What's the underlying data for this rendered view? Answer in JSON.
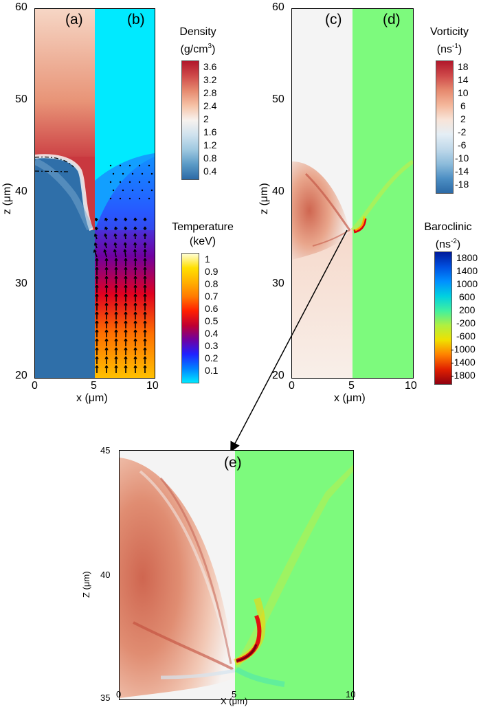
{
  "panels": {
    "a": "(a)",
    "b": "(b)",
    "c": "(c)",
    "d": "(d)",
    "e": "(e)"
  },
  "top_left": {
    "x_label_prefix": "x (",
    "x_label_unit": "μm",
    "x_label_suffix": ")",
    "z_label_prefix": "z (",
    "z_label_unit": "μm",
    "z_label_suffix": ")",
    "x_ticks": [
      "0",
      "5",
      "10"
    ],
    "z_ticks": [
      "60",
      "50",
      "40",
      "30",
      "20"
    ]
  },
  "top_right": {
    "x_label_prefix": "x (",
    "x_label_unit": "μm",
    "x_label_suffix": ")",
    "z_label_prefix": "z (",
    "z_label_unit": "μm",
    "z_label_suffix": ")",
    "x_ticks": [
      "0",
      "5",
      "10"
    ],
    "z_ticks": [
      "60",
      "50",
      "40",
      "30",
      "20"
    ]
  },
  "bottom": {
    "x_label_prefix": "X (",
    "x_label_unit": "μm",
    "x_label_suffix": ")",
    "z_label_prefix": "Z (",
    "z_label_unit": "μm",
    "z_label_suffix": ")",
    "x_ticks": [
      "0",
      "5",
      "10"
    ],
    "z_ticks": [
      "45",
      "40",
      "35"
    ]
  },
  "legends": {
    "density": {
      "title_line1": "Density",
      "title_line2_main": "(g/cm",
      "title_line2_sup": "3",
      "title_line2_end": ")",
      "ticks": [
        "3.6",
        "3.2",
        "2.8",
        "2.4",
        "2",
        "1.6",
        "1.2",
        "0.8",
        "0.4"
      ],
      "colors": [
        "#b1182b",
        "#cf4a4a",
        "#e68a6f",
        "#f6c2a6",
        "#f7f2ee",
        "#cfe2ee",
        "#9ec8e0",
        "#5a9ac6",
        "#2c6aa6"
      ]
    },
    "temperature": {
      "title_line1": "Temperature",
      "title_line2": "(keV)",
      "ticks": [
        "1",
        "0.9",
        "0.8",
        "0.7",
        "0.6",
        "0.5",
        "0.4",
        "0.3",
        "0.2",
        "0.1"
      ],
      "colors": [
        "#ffffd8",
        "#ffe000",
        "#ffb000",
        "#ff7a00",
        "#ff2000",
        "#c00030",
        "#7000a0",
        "#2020ff",
        "#0080ff",
        "#00e8ff"
      ]
    },
    "vorticity": {
      "title_line1": "Vorticity",
      "title_line2_main": "(ns",
      "title_line2_sup": "-1",
      "title_line2_end": ")",
      "ticks": [
        "18",
        "14",
        "10",
        "6",
        "2",
        "-2",
        "-6",
        "-10",
        "-14",
        "-18"
      ],
      "colors": [
        "#b1182b",
        "#cf4a4a",
        "#e68a6f",
        "#f4b79b",
        "#f8e4d8",
        "#e4eef5",
        "#c0d9ea",
        "#8dbcdb",
        "#4d8fc4",
        "#2c6aa6"
      ]
    },
    "baroclinic": {
      "title_line1": "Baroclinic",
      "title_line2_main": "(ns",
      "title_line2_sup": "-2",
      "title_line2_end": ")",
      "ticks": [
        "1800",
        "1400",
        "1000",
        "600",
        "200",
        "-200",
        "-600",
        "-1000",
        "-1400",
        "-1800"
      ],
      "colors": [
        "#001a9a",
        "#0050e0",
        "#0090ff",
        "#00d0e0",
        "#40f0a0",
        "#b0f040",
        "#f0e000",
        "#ff8000",
        "#e02000",
        "#900010"
      ]
    }
  },
  "colors": {
    "density_high": "#c9383f",
    "density_low": "#2f6fa9",
    "temp_cyan": "#00eaff",
    "baro_green": "#7dfa7d",
    "arrow": "#000000"
  }
}
